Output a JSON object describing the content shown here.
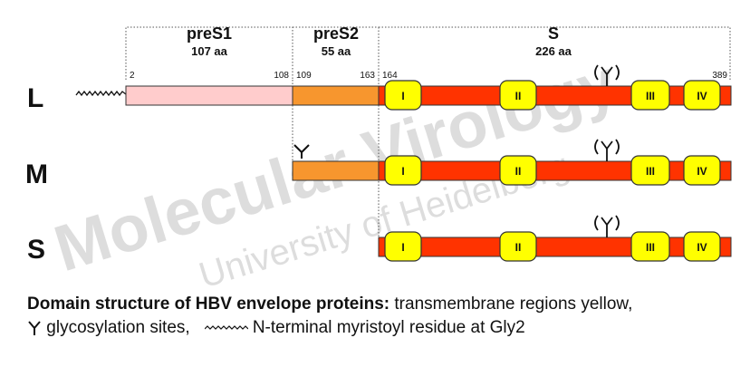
{
  "domains": [
    {
      "name": "preS1",
      "length": "107 aa"
    },
    {
      "name": "preS2",
      "length": "55 aa"
    },
    {
      "name": "S",
      "length": "226 aa"
    }
  ],
  "positions": {
    "p2": "2",
    "p108": "108",
    "p109": "109",
    "p163": "163",
    "p164": "164",
    "p389": "389"
  },
  "proteins": [
    {
      "label": "L",
      "tm_regions": [
        "I",
        "II",
        "III",
        "IV"
      ]
    },
    {
      "label": "M",
      "tm_regions": [
        "I",
        "II",
        "III",
        "IV"
      ]
    },
    {
      "label": "S",
      "tm_regions": [
        "I",
        "II",
        "III",
        "IV"
      ]
    }
  ],
  "watermark": {
    "main": "Molecular Virology",
    "sub": "University of Heidelberg"
  },
  "caption": {
    "bold": "Domain structure of HBV envelope proteins:",
    "rest": " transmembrane regions yellow,",
    "line2_glyco": "glycosylation sites,",
    "line2_myr": "N-terminal myristoyl residue at Gly2"
  },
  "colors": {
    "preS1": "#ffcccc",
    "preS2": "#f7962e",
    "S": "#ff3300",
    "tm": "#ffff00",
    "outline": "#333333"
  },
  "icons": {
    "glycosylation": "glycosylation-branch-icon",
    "myristoyl": "myristoyl-zigzag-icon"
  }
}
